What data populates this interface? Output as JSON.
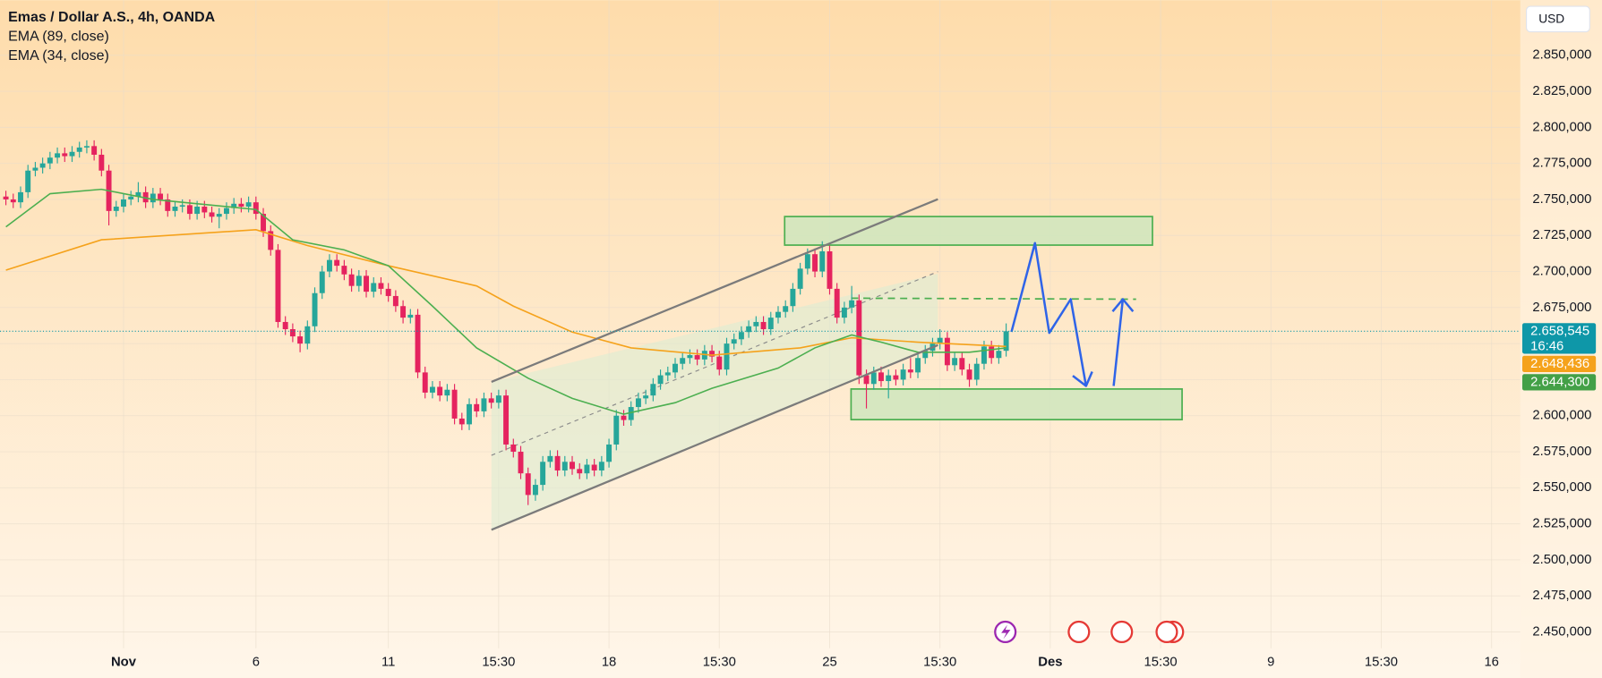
{
  "chart_data": {
    "type": "candlestick",
    "title": "Emas / Dollar A.S., 4h, OANDA",
    "currency": "USD",
    "countdown": "16:46",
    "up_color": "#26a69a",
    "down_color": "#e5235f",
    "candles": {
      "open": [
        2.752,
        2.75,
        2.748,
        2.755,
        2.77,
        2.772,
        2.775,
        2.779,
        2.782,
        2.78,
        2.783,
        2.786,
        2.787,
        2.781,
        2.77,
        2.742,
        2.745,
        2.75,
        2.752,
        2.755,
        2.748,
        2.754,
        2.75,
        2.742,
        2.745,
        2.746,
        2.74,
        2.745,
        2.741,
        2.738,
        2.74,
        2.744,
        2.747,
        2.745,
        2.748,
        2.74,
        2.728,
        2.715,
        2.665,
        2.66,
        2.655,
        2.65,
        2.662,
        2.685,
        2.7,
        2.708,
        2.704,
        2.698,
        2.69,
        2.697,
        2.686,
        2.692,
        2.688,
        2.683,
        2.676,
        2.668,
        2.67,
        2.63,
        2.616,
        2.62,
        2.614,
        2.618,
        2.598,
        2.594,
        2.608,
        2.603,
        2.612,
        2.609,
        2.614,
        2.58,
        2.575,
        2.56,
        2.545,
        2.552,
        2.568,
        2.572,
        2.562,
        2.568,
        2.563,
        2.56,
        2.566,
        2.562,
        2.568,
        2.58,
        2.6,
        2.597,
        2.606,
        2.612,
        2.614,
        2.622,
        2.628,
        2.63,
        2.636,
        2.64,
        2.642,
        2.639,
        2.645,
        2.641,
        2.632,
        2.65,
        2.653,
        2.658,
        2.662,
        2.665,
        2.66,
        2.668,
        2.672,
        2.676,
        2.688,
        2.702,
        2.712,
        2.7,
        2.714,
        2.688,
        2.668,
        2.675,
        2.68,
        2.628,
        2.622,
        2.63,
        2.624,
        2.628,
        2.625,
        2.632,
        2.63,
        2.64,
        2.645,
        2.65,
        2.654,
        2.635,
        2.64,
        2.632,
        2.625,
        2.636,
        2.648,
        2.64,
        2.645
      ],
      "high": [
        2.756,
        2.754,
        2.759,
        2.774,
        2.776,
        2.779,
        2.783,
        2.786,
        2.786,
        2.787,
        2.79,
        2.791,
        2.791,
        2.785,
        2.774,
        2.749,
        2.754,
        2.756,
        2.762,
        2.759,
        2.758,
        2.758,
        2.754,
        2.749,
        2.75,
        2.75,
        2.749,
        2.749,
        2.745,
        2.744,
        2.748,
        2.751,
        2.751,
        2.752,
        2.752,
        2.744,
        2.732,
        2.719,
        2.669,
        2.664,
        2.659,
        2.666,
        2.689,
        2.704,
        2.712,
        2.712,
        2.708,
        2.702,
        2.701,
        2.701,
        2.696,
        2.696,
        2.692,
        2.687,
        2.68,
        2.674,
        2.674,
        2.634,
        2.624,
        2.624,
        2.622,
        2.622,
        2.602,
        2.612,
        2.612,
        2.616,
        2.616,
        2.618,
        2.618,
        2.584,
        2.579,
        2.564,
        2.556,
        2.572,
        2.576,
        2.576,
        2.572,
        2.572,
        2.567,
        2.57,
        2.57,
        2.572,
        2.584,
        2.604,
        2.604,
        2.61,
        2.616,
        2.618,
        2.626,
        2.632,
        2.634,
        2.64,
        2.644,
        2.646,
        2.646,
        2.649,
        2.649,
        2.645,
        2.654,
        2.657,
        2.662,
        2.666,
        2.669,
        2.669,
        2.672,
        2.676,
        2.68,
        2.692,
        2.706,
        2.716,
        2.716,
        2.721,
        2.718,
        2.692,
        2.679,
        2.69,
        2.684,
        2.632,
        2.634,
        2.634,
        2.632,
        2.632,
        2.636,
        2.64,
        2.644,
        2.649,
        2.654,
        2.66,
        2.658,
        2.644,
        2.644,
        2.636,
        2.64,
        2.652,
        2.652,
        2.649,
        2.664
      ],
      "low": [
        2.746,
        2.744,
        2.744,
        2.751,
        2.766,
        2.768,
        2.771,
        2.775,
        2.776,
        2.776,
        2.779,
        2.782,
        2.777,
        2.766,
        2.732,
        2.738,
        2.741,
        2.746,
        2.748,
        2.744,
        2.744,
        2.746,
        2.738,
        2.738,
        2.741,
        2.736,
        2.736,
        2.737,
        2.734,
        2.73,
        2.736,
        2.74,
        2.741,
        2.741,
        2.736,
        2.724,
        2.711,
        2.661,
        2.656,
        2.651,
        2.644,
        2.646,
        2.658,
        2.681,
        2.696,
        2.7,
        2.694,
        2.686,
        2.686,
        2.682,
        2.682,
        2.684,
        2.679,
        2.672,
        2.664,
        2.664,
        2.626,
        2.612,
        2.612,
        2.61,
        2.61,
        2.594,
        2.59,
        2.59,
        2.599,
        2.599,
        2.605,
        2.605,
        2.576,
        2.571,
        2.556,
        2.538,
        2.541,
        2.548,
        2.564,
        2.558,
        2.558,
        2.559,
        2.556,
        2.556,
        2.558,
        2.558,
        2.564,
        2.576,
        2.593,
        2.593,
        2.602,
        2.608,
        2.61,
        2.618,
        2.624,
        2.626,
        2.632,
        2.636,
        2.635,
        2.635,
        2.637,
        2.628,
        2.628,
        2.646,
        2.649,
        2.654,
        2.658,
        2.656,
        2.656,
        2.664,
        2.668,
        2.672,
        2.684,
        2.698,
        2.696,
        2.696,
        2.684,
        2.664,
        2.664,
        2.671,
        2.622,
        2.605,
        2.618,
        2.62,
        2.612,
        2.621,
        2.621,
        2.626,
        2.626,
        2.636,
        2.641,
        2.646,
        2.631,
        2.631,
        2.628,
        2.62,
        2.621,
        2.632,
        2.636,
        2.636,
        2.641
      ],
      "close": [
        2.75,
        2.748,
        2.755,
        2.77,
        2.772,
        2.775,
        2.779,
        2.782,
        2.78,
        2.783,
        2.786,
        2.787,
        2.781,
        2.77,
        2.742,
        2.745,
        2.75,
        2.752,
        2.755,
        2.748,
        2.754,
        2.75,
        2.742,
        2.745,
        2.746,
        2.74,
        2.745,
        2.741,
        2.738,
        2.74,
        2.744,
        2.747,
        2.745,
        2.748,
        2.74,
        2.728,
        2.715,
        2.665,
        2.66,
        2.655,
        2.65,
        2.662,
        2.685,
        2.7,
        2.708,
        2.704,
        2.698,
        2.69,
        2.697,
        2.686,
        2.692,
        2.688,
        2.683,
        2.676,
        2.668,
        2.67,
        2.63,
        2.616,
        2.62,
        2.614,
        2.618,
        2.598,
        2.594,
        2.608,
        2.603,
        2.612,
        2.609,
        2.614,
        2.58,
        2.575,
        2.56,
        2.545,
        2.552,
        2.568,
        2.572,
        2.562,
        2.568,
        2.563,
        2.56,
        2.566,
        2.562,
        2.568,
        2.58,
        2.6,
        2.597,
        2.606,
        2.612,
        2.614,
        2.622,
        2.628,
        2.63,
        2.636,
        2.64,
        2.642,
        2.639,
        2.645,
        2.641,
        2.632,
        2.65,
        2.653,
        2.658,
        2.662,
        2.665,
        2.66,
        2.668,
        2.672,
        2.676,
        2.688,
        2.702,
        2.712,
        2.7,
        2.714,
        2.688,
        2.668,
        2.675,
        2.68,
        2.628,
        2.622,
        2.63,
        2.624,
        2.628,
        2.625,
        2.632,
        2.63,
        2.64,
        2.645,
        2.65,
        2.654,
        2.635,
        2.64,
        2.632,
        2.625,
        2.636,
        2.648,
        2.64,
        2.645,
        2.658545
      ]
    },
    "series": [
      {
        "name": "EMA (89, close)",
        "color": "#f5a21b",
        "x": [
          0,
          13,
          34,
          41,
          52,
          64,
          69,
          77,
          85,
          96,
          108,
          115,
          124,
          136
        ],
        "values": [
          2.701,
          2.722,
          2.729,
          2.718,
          2.704,
          2.69,
          2.676,
          2.658,
          2.647,
          2.642,
          2.647,
          2.654,
          2.651,
          2.648
        ]
      },
      {
        "name": "EMA (34, close)",
        "color": "#4caf50",
        "x": [
          0,
          6,
          13,
          20,
          34,
          39,
          46,
          52,
          58,
          64,
          71,
          77,
          84,
          91,
          96,
          105,
          110,
          115,
          119,
          124,
          131,
          136
        ],
        "values": [
          2.731,
          2.754,
          2.757,
          2.75,
          2.743,
          2.722,
          2.715,
          2.704,
          2.676,
          2.647,
          2.626,
          2.612,
          2.601,
          2.609,
          2.619,
          2.633,
          2.647,
          2.656,
          2.651,
          2.644,
          2.644,
          2.647
        ]
      }
    ],
    "price_labels": [
      {
        "value": 2.658545,
        "label": "2.658,545",
        "color": "#0e97a8"
      },
      {
        "value": 2.648436,
        "label": "2.648,436",
        "color": "#f5a21b"
      },
      {
        "value": 2.6443,
        "label": "2.644,300",
        "color": "#43a047"
      }
    ],
    "ylim": [
      2.4387,
      2.8882
    ],
    "yticks": [
      {
        "value": 2.45,
        "label": "2.450,000"
      },
      {
        "value": 2.475,
        "label": "2.475,000"
      },
      {
        "value": 2.5,
        "label": "2.500,000"
      },
      {
        "value": 2.525,
        "label": "2.525,000"
      },
      {
        "value": 2.55,
        "label": "2.550,000"
      },
      {
        "value": 2.575,
        "label": "2.575,000"
      },
      {
        "value": 2.6,
        "label": "2.600,000"
      },
      {
        "value": 2.625,
        "label": "2.625,000"
      },
      {
        "value": 2.65,
        "label": "2.650,000"
      },
      {
        "value": 2.675,
        "label": "2.675,000"
      },
      {
        "value": 2.7,
        "label": "2.700,000"
      },
      {
        "value": 2.725,
        "label": "2.725,000"
      },
      {
        "value": 2.75,
        "label": "2.750,000"
      },
      {
        "value": 2.775,
        "label": "2.775,000"
      },
      {
        "value": 2.8,
        "label": "2.800,000"
      },
      {
        "value": 2.825,
        "label": "2.825,000"
      },
      {
        "value": 2.85,
        "label": "2.850,000"
      }
    ],
    "xlim": [
      -0.8,
      205.9
    ],
    "xticks": [
      {
        "value": 16,
        "label": "Nov"
      },
      {
        "value": 34,
        "label": "6"
      },
      {
        "value": 52,
        "label": "11"
      },
      {
        "value": 67,
        "label": "15:30"
      },
      {
        "value": 82,
        "label": "18"
      },
      {
        "value": 97,
        "label": "15:30"
      },
      {
        "value": 112,
        "label": "25"
      },
      {
        "value": 127,
        "label": "15:30"
      },
      {
        "value": 142,
        "label": "Des"
      },
      {
        "value": 157,
        "label": "15:30"
      },
      {
        "value": 172,
        "label": "9"
      },
      {
        "value": 187,
        "label": "15:30"
      },
      {
        "value": 202,
        "label": "16"
      }
    ],
    "grid": true
  }
}
